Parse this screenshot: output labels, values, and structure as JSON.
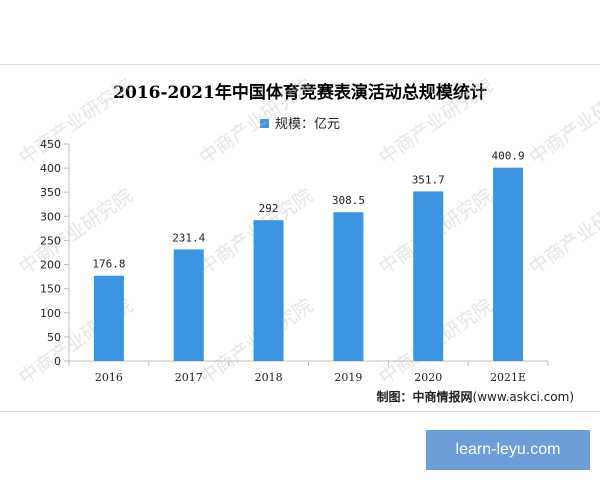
{
  "chart_data": {
    "type": "bar",
    "title": "2016-2021年中国体育竞赛表演活动总规模统计",
    "categories": [
      "2016",
      "2017",
      "2018",
      "2019",
      "2020",
      "2021E"
    ],
    "series": [
      {
        "name": "规模：亿元",
        "values": [
          176.8,
          231.4,
          292,
          308.5,
          351.7,
          400.9
        ]
      }
    ],
    "value_labels": [
      "176.8",
      "231.4",
      "292",
      "308.5",
      "351.7",
      "400.9"
    ],
    "ylim": [
      0,
      450
    ],
    "yticks": [
      0,
      50,
      100,
      150,
      200,
      250,
      300,
      350,
      400,
      450
    ],
    "legend_position": "top-center",
    "grid": false,
    "bar_color": "#3b95e3"
  },
  "source": {
    "label": "制图：中商情报网",
    "url": "(www.askci.com)"
  },
  "watermark": "中商产业研究院",
  "brand": "learn-leyu.com"
}
